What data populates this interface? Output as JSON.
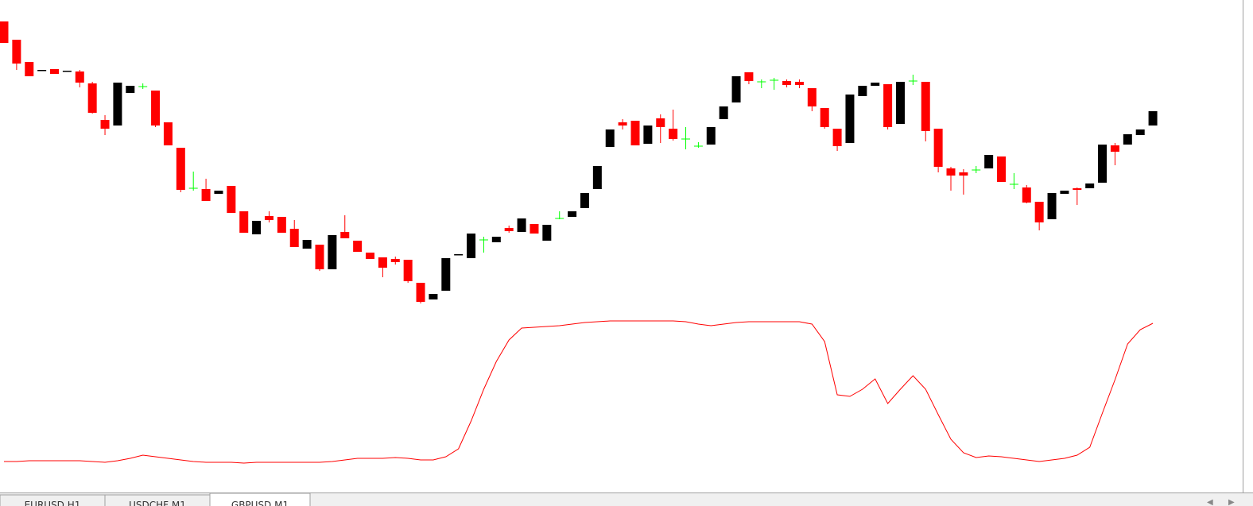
{
  "chart_data": {
    "type": "candlestick",
    "ylim": [
      20,
      640
    ],
    "up_color": "#000000",
    "down_color": "#ff0000",
    "doji_color": "#00ff00",
    "open": [
      613,
      590,
      562,
      551,
      553,
      550,
      550,
      535,
      489,
      482,
      523,
      531,
      526,
      486,
      454,
      403,
      402,
      396,
      406,
      374,
      345,
      368,
      367,
      352,
      327,
      332,
      301,
      348,
      337,
      322,
      316,
      314,
      313,
      284,
      263,
      274,
      319,
      315,
      338,
      335,
      353,
      348,
      358,
      337,
      365,
      367,
      378,
      402,
      455,
      486,
      488,
      459,
      491,
      478,
      465,
      456,
      458,
      490,
      511,
      549,
      537,
      539,
      538,
      537,
      529,
      504,
      478,
      460,
      519,
      532,
      534,
      484,
      538,
      537,
      478,
      428,
      423,
      426,
      428,
      443,
      408,
      404,
      386,
      364,
      396,
      403,
      403,
      410,
      457,
      458,
      470,
      482
    ],
    "high": [
      613,
      590,
      562,
      552,
      553,
      551,
      552,
      537,
      495,
      536,
      532,
      535,
      526,
      486,
      454,
      424,
      415,
      400,
      406,
      374,
      362,
      374,
      367,
      363,
      338,
      332,
      344,
      369,
      337,
      322,
      316,
      317,
      313,
      284,
      270,
      315,
      320,
      346,
      342,
      342,
      356,
      365,
      358,
      357,
      374,
      374,
      397,
      431,
      477,
      490,
      488,
      482,
      496,
      502,
      480,
      461,
      480,
      506,
      544,
      549,
      540,
      542,
      540,
      540,
      529,
      504,
      478,
      521,
      532,
      536,
      534,
      537,
      546,
      537,
      478,
      430,
      427,
      431,
      445,
      443,
      422,
      407,
      386,
      397,
      400,
      404,
      409,
      458,
      460,
      471,
      477,
      500
    ],
    "low": [
      586,
      552,
      544,
      551,
      547,
      550,
      530,
      497,
      470,
      482,
      523,
      528,
      480,
      457,
      398,
      400,
      387,
      396,
      372,
      347,
      345,
      360,
      347,
      329,
      327,
      299,
      301,
      340,
      323,
      314,
      291,
      307,
      284,
      258,
      263,
      274,
      319,
      315,
      322,
      335,
      347,
      348,
      346,
      337,
      364,
      367,
      378,
      402,
      455,
      477,
      457,
      459,
      460,
      463,
      452,
      454,
      458,
      490,
      511,
      534,
      529,
      527,
      530,
      529,
      500,
      478,
      450,
      460,
      519,
      532,
      477,
      484,
      533,
      462,
      423,
      400,
      395,
      422,
      428,
      411,
      402,
      384,
      350,
      364,
      396,
      382,
      403,
      410,
      432,
      458,
      470,
      482
    ],
    "close": [
      586,
      560,
      544,
      552,
      547,
      551,
      536,
      498,
      478,
      536,
      532,
      531,
      482,
      457,
      401,
      403,
      387,
      400,
      372,
      347,
      362,
      363,
      347,
      329,
      338,
      301,
      344,
      340,
      323,
      314,
      303,
      310,
      286,
      260,
      270,
      315,
      320,
      346,
      338,
      342,
      349,
      365,
      346,
      357,
      365,
      374,
      397,
      431,
      477,
      482,
      457,
      482,
      480,
      465,
      465,
      456,
      480,
      506,
      544,
      538,
      537,
      539,
      533,
      533,
      506,
      480,
      456,
      521,
      532,
      536,
      480,
      537,
      538,
      475,
      430,
      419,
      419,
      426,
      445,
      411,
      408,
      385,
      360,
      397,
      400,
      401,
      409,
      458,
      449,
      471,
      477,
      500
    ],
    "series": [
      {
        "color": "#ff0000",
        "values": [
          59,
          59,
          60,
          60,
          60,
          60,
          60,
          59,
          58,
          60,
          63,
          67,
          65,
          63,
          61,
          59,
          58,
          58,
          58,
          57,
          58,
          58,
          58,
          58,
          58,
          58,
          59,
          61,
          63,
          63,
          63,
          64,
          63,
          61,
          61,
          65,
          75,
          110,
          150,
          185,
          212,
          227,
          228,
          229,
          230,
          232,
          234,
          235,
          236,
          236,
          236,
          236,
          236,
          236,
          235,
          232,
          230,
          232,
          234,
          235,
          235,
          235,
          235,
          235,
          232,
          210,
          143,
          141,
          150,
          163,
          132,
          150,
          167,
          150,
          118,
          87,
          70,
          64,
          66,
          65,
          63,
          61,
          59,
          61,
          63,
          67,
          77,
          120,
          162,
          207,
          225,
          233
        ]
      }
    ]
  },
  "tabs": [
    {
      "label": "EURUSD,H1",
      "active": false
    },
    {
      "label": "USDCHF,M1",
      "active": false
    },
    {
      "label": "GBPUSD,M1",
      "active": true
    }
  ]
}
